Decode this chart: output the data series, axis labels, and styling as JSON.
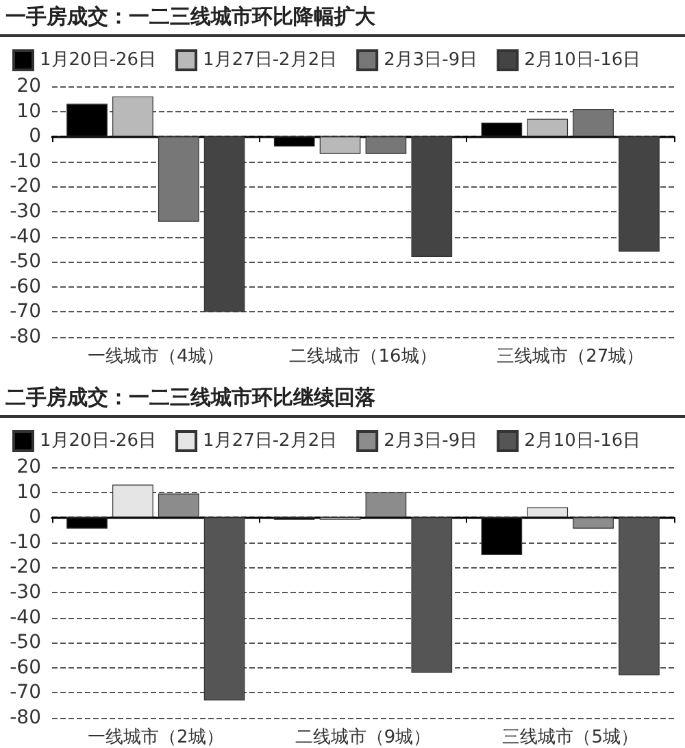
{
  "chart_data": [
    {
      "type": "bar",
      "title": "一手房成交：一二三线城市环比降幅扩大",
      "categories": [
        "一线城市（4城）",
        "二线城市（16城）",
        "三线城市（27城）"
      ],
      "series": [
        {
          "name": "1月20日-26日",
          "color": "#000000",
          "values": [
            13,
            -4,
            5.5
          ]
        },
        {
          "name": "1月27日-2月2日",
          "color": "#b9b9b9",
          "values": [
            16,
            -7,
            7
          ]
        },
        {
          "name": "2月3日-9日",
          "color": "#777777",
          "values": [
            -34,
            -7,
            11
          ]
        },
        {
          "name": "2月10日-16日",
          "color": "#444444",
          "values": [
            -70,
            -48,
            -46
          ]
        }
      ],
      "ylim": [
        -80,
        20
      ],
      "yticks": [
        -80,
        -70,
        -60,
        -50,
        -40,
        -30,
        -20,
        -10,
        0,
        10,
        20
      ],
      "grid": "y",
      "legend": "top"
    },
    {
      "type": "bar",
      "title": "二手房成交：一二三线城市环比继续回落",
      "categories": [
        "一线城市（2城）",
        "二线城市（9城）",
        "三线城市（5城）"
      ],
      "series": [
        {
          "name": "1月20日-26日",
          "color": "#000000",
          "values": [
            -4.5,
            -1,
            -15
          ]
        },
        {
          "name": "1月27日-2月2日",
          "color": "#e5e5e5",
          "values": [
            13,
            -1,
            4
          ]
        },
        {
          "name": "2月3日-9日",
          "color": "#8c8c8c",
          "values": [
            9.5,
            10,
            -4.5
          ]
        },
        {
          "name": "2月10日-16日",
          "color": "#555555",
          "values": [
            -73,
            -62,
            -63
          ]
        }
      ],
      "ylim": [
        -80,
        20
      ],
      "yticks": [
        -80,
        -70,
        -60,
        -50,
        -40,
        -30,
        -20,
        -10,
        0,
        10,
        20
      ],
      "grid": "y",
      "legend": "top"
    }
  ]
}
